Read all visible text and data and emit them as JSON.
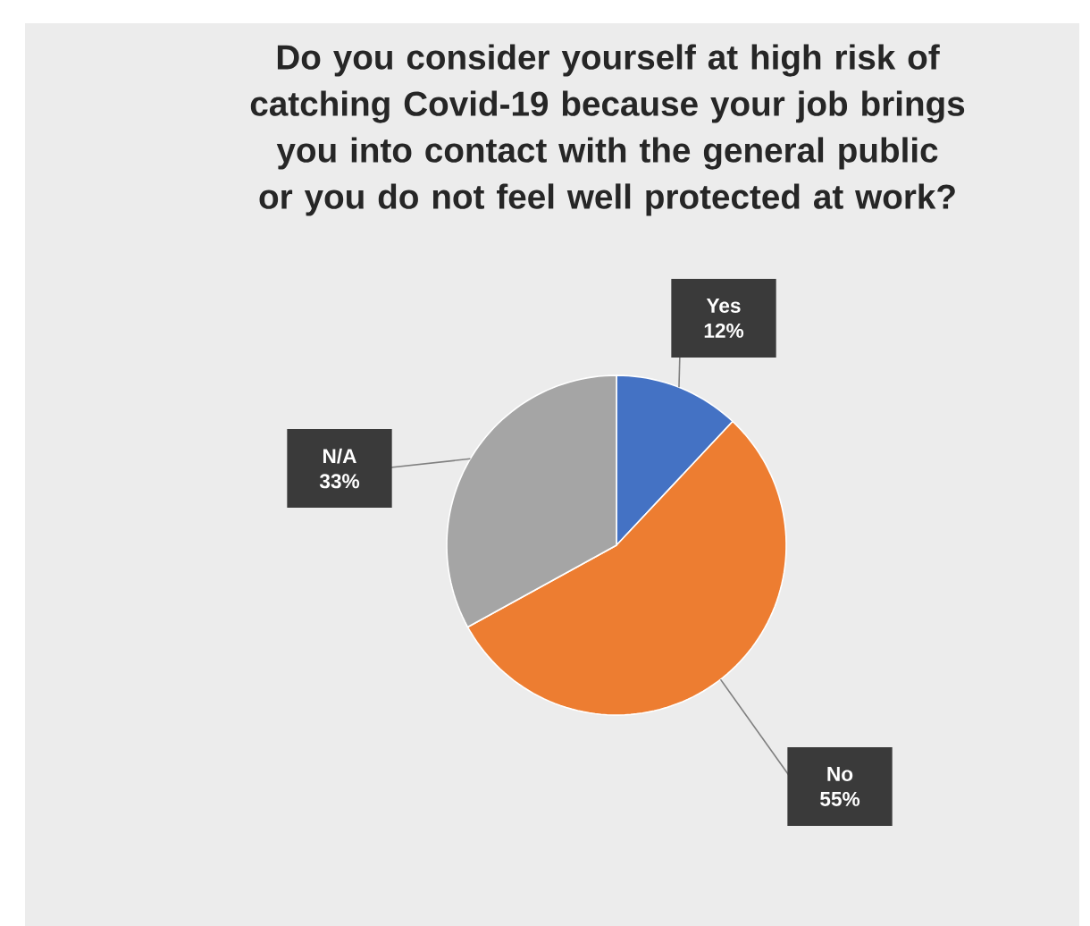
{
  "chart_data": {
    "type": "pie",
    "title": "Do you consider yourself at high risk of catching Covid-19 because your job brings you into contact with the general public or you do not feel well protected at work?",
    "categories": [
      "Yes",
      "No",
      "N/A"
    ],
    "values": [
      12,
      55,
      33
    ],
    "value_labels": [
      "12%",
      "55%",
      "33%"
    ],
    "colors": [
      "#4472c4",
      "#ed7d31",
      "#a5a5a5"
    ]
  }
}
